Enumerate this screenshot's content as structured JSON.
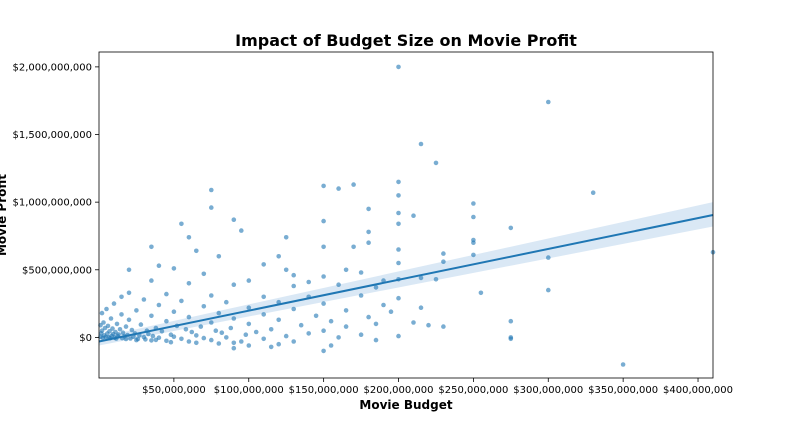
{
  "chart_data": {
    "type": "scatter",
    "title": "Impact of Budget Size on Movie Profit",
    "xlabel": "Movie Budget",
    "ylabel": "Movie Profit",
    "xlim": [
      0,
      410000000
    ],
    "ylim": [
      -300000000,
      2110000000
    ],
    "x_ticks": [
      {
        "value": 50000000,
        "label": "$50,000,000"
      },
      {
        "value": 100000000,
        "label": "$100,000,000"
      },
      {
        "value": 150000000,
        "label": "$150,000,000"
      },
      {
        "value": 200000000,
        "label": "$200,000,000"
      },
      {
        "value": 250000000,
        "label": "$250,000,000"
      },
      {
        "value": 300000000,
        "label": "$300,000,000"
      },
      {
        "value": 350000000,
        "label": "$350,000,000"
      },
      {
        "value": 400000000,
        "label": "$400,000,000"
      }
    ],
    "y_ticks": [
      {
        "value": 0,
        "label": "$0"
      },
      {
        "value": 500000000,
        "label": "$500,000,000"
      },
      {
        "value": 1000000000,
        "label": "$1,000,000,000"
      },
      {
        "value": 1500000000,
        "label": "$1,500,000,000"
      },
      {
        "value": 2000000000,
        "label": "$2,000,000,000"
      }
    ],
    "regression": {
      "x": [
        0,
        410000000
      ],
      "y": [
        -30000000,
        905000000
      ],
      "ci_lower": [
        -60000000,
        820000000
      ],
      "ci_upper": [
        0,
        1000000000
      ]
    },
    "colors": {
      "points": "#1f77b4",
      "line": "#1f77b4",
      "band": "#aecde8"
    },
    "points": [
      [
        200000000,
        2000000000
      ],
      [
        300000000,
        1740000000
      ],
      [
        215000000,
        1430000000
      ],
      [
        225000000,
        1290000000
      ],
      [
        330000000,
        1070000000
      ],
      [
        75000000,
        1090000000
      ],
      [
        150000000,
        1120000000
      ],
      [
        170000000,
        1130000000
      ],
      [
        200000000,
        1150000000
      ],
      [
        160000000,
        1100000000
      ],
      [
        200000000,
        1050000000
      ],
      [
        250000000,
        990000000
      ],
      [
        75000000,
        960000000
      ],
      [
        180000000,
        950000000
      ],
      [
        200000000,
        920000000
      ],
      [
        210000000,
        900000000
      ],
      [
        250000000,
        890000000
      ],
      [
        90000000,
        870000000
      ],
      [
        150000000,
        860000000
      ],
      [
        200000000,
        840000000
      ],
      [
        55000000,
        840000000
      ],
      [
        275000000,
        810000000
      ],
      [
        95000000,
        790000000
      ],
      [
        180000000,
        780000000
      ],
      [
        60000000,
        740000000
      ],
      [
        125000000,
        740000000
      ],
      [
        250000000,
        720000000
      ],
      [
        180000000,
        700000000
      ],
      [
        250000000,
        700000000
      ],
      [
        35000000,
        670000000
      ],
      [
        150000000,
        670000000
      ],
      [
        170000000,
        670000000
      ],
      [
        65000000,
        640000000
      ],
      [
        200000000,
        650000000
      ],
      [
        230000000,
        620000000
      ],
      [
        120000000,
        600000000
      ],
      [
        300000000,
        590000000
      ],
      [
        80000000,
        600000000
      ],
      [
        230000000,
        560000000
      ],
      [
        200000000,
        550000000
      ],
      [
        40000000,
        530000000
      ],
      [
        110000000,
        540000000
      ],
      [
        20000000,
        500000000
      ],
      [
        50000000,
        510000000
      ],
      [
        125000000,
        500000000
      ],
      [
        165000000,
        500000000
      ],
      [
        175000000,
        480000000
      ],
      [
        70000000,
        470000000
      ],
      [
        130000000,
        460000000
      ],
      [
        150000000,
        450000000
      ],
      [
        200000000,
        430000000
      ],
      [
        250000000,
        610000000
      ],
      [
        100000000,
        420000000
      ],
      [
        140000000,
        410000000
      ],
      [
        190000000,
        420000000
      ],
      [
        225000000,
        430000000
      ],
      [
        215000000,
        440000000
      ],
      [
        35000000,
        420000000
      ],
      [
        60000000,
        400000000
      ],
      [
        90000000,
        390000000
      ],
      [
        130000000,
        380000000
      ],
      [
        160000000,
        390000000
      ],
      [
        185000000,
        370000000
      ],
      [
        300000000,
        350000000
      ],
      [
        255000000,
        330000000
      ],
      [
        20000000,
        330000000
      ],
      [
        45000000,
        320000000
      ],
      [
        75000000,
        310000000
      ],
      [
        110000000,
        300000000
      ],
      [
        140000000,
        300000000
      ],
      [
        175000000,
        310000000
      ],
      [
        200000000,
        290000000
      ],
      [
        15000000,
        300000000
      ],
      [
        30000000,
        280000000
      ],
      [
        55000000,
        270000000
      ],
      [
        85000000,
        260000000
      ],
      [
        120000000,
        260000000
      ],
      [
        150000000,
        250000000
      ],
      [
        190000000,
        240000000
      ],
      [
        215000000,
        220000000
      ],
      [
        10000000,
        250000000
      ],
      [
        40000000,
        240000000
      ],
      [
        70000000,
        230000000
      ],
      [
        100000000,
        220000000
      ],
      [
        130000000,
        210000000
      ],
      [
        165000000,
        200000000
      ],
      [
        195000000,
        190000000
      ],
      [
        5000000,
        210000000
      ],
      [
        25000000,
        200000000
      ],
      [
        50000000,
        190000000
      ],
      [
        80000000,
        180000000
      ],
      [
        110000000,
        170000000
      ],
      [
        145000000,
        160000000
      ],
      [
        180000000,
        150000000
      ],
      [
        275000000,
        120000000
      ],
      [
        210000000,
        110000000
      ],
      [
        2000000,
        180000000
      ],
      [
        15000000,
        170000000
      ],
      [
        35000000,
        160000000
      ],
      [
        60000000,
        150000000
      ],
      [
        90000000,
        140000000
      ],
      [
        120000000,
        130000000
      ],
      [
        155000000,
        120000000
      ],
      [
        185000000,
        100000000
      ],
      [
        8000000,
        140000000
      ],
      [
        20000000,
        130000000
      ],
      [
        45000000,
        120000000
      ],
      [
        75000000,
        110000000
      ],
      [
        100000000,
        100000000
      ],
      [
        135000000,
        90000000
      ],
      [
        165000000,
        80000000
      ],
      [
        220000000,
        90000000
      ],
      [
        3000000,
        110000000
      ],
      [
        12000000,
        100000000
      ],
      [
        28000000,
        95000000
      ],
      [
        52000000,
        85000000
      ],
      [
        68000000,
        80000000
      ],
      [
        88000000,
        70000000
      ],
      [
        115000000,
        60000000
      ],
      [
        150000000,
        50000000
      ],
      [
        1000000,
        90000000
      ],
      [
        6000000,
        85000000
      ],
      [
        18000000,
        80000000
      ],
      [
        38000000,
        70000000
      ],
      [
        58000000,
        60000000
      ],
      [
        78000000,
        50000000
      ],
      [
        105000000,
        40000000
      ],
      [
        140000000,
        30000000
      ],
      [
        175000000,
        20000000
      ],
      [
        200000000,
        10000000
      ],
      [
        230000000,
        80000000
      ],
      [
        275000000,
        0
      ],
      [
        4000000,
        70000000
      ],
      [
        9000000,
        65000000
      ],
      [
        14000000,
        60000000
      ],
      [
        22000000,
        55000000
      ],
      [
        32000000,
        50000000
      ],
      [
        42000000,
        45000000
      ],
      [
        62000000,
        40000000
      ],
      [
        82000000,
        35000000
      ],
      [
        98000000,
        20000000
      ],
      [
        125000000,
        10000000
      ],
      [
        160000000,
        0
      ],
      [
        185000000,
        -20000000
      ],
      [
        2000000,
        50000000
      ],
      [
        7000000,
        45000000
      ],
      [
        11000000,
        40000000
      ],
      [
        16000000,
        35000000
      ],
      [
        24000000,
        30000000
      ],
      [
        33000000,
        25000000
      ],
      [
        48000000,
        20000000
      ],
      [
        65000000,
        15000000
      ],
      [
        85000000,
        0
      ],
      [
        110000000,
        -10000000
      ],
      [
        130000000,
        -30000000
      ],
      [
        155000000,
        -60000000
      ],
      [
        1500000,
        30000000
      ],
      [
        5500000,
        28000000
      ],
      [
        9500000,
        25000000
      ],
      [
        13000000,
        22000000
      ],
      [
        19000000,
        18000000
      ],
      [
        27000000,
        15000000
      ],
      [
        36000000,
        10000000
      ],
      [
        50000000,
        5000000
      ],
      [
        70000000,
        -5000000
      ],
      [
        90000000,
        -40000000
      ],
      [
        120000000,
        -50000000
      ],
      [
        150000000,
        -100000000
      ],
      [
        3500000,
        15000000
      ],
      [
        8500000,
        12000000
      ],
      [
        12500000,
        10000000
      ],
      [
        17000000,
        8000000
      ],
      [
        23000000,
        5000000
      ],
      [
        30000000,
        2000000
      ],
      [
        40000000,
        -2000000
      ],
      [
        55000000,
        -10000000
      ],
      [
        75000000,
        -20000000
      ],
      [
        95000000,
        -30000000
      ],
      [
        275000000,
        -10000000
      ],
      [
        350000000,
        -200000000
      ],
      [
        410000000,
        630000000
      ],
      [
        1000000,
        5000000
      ],
      [
        4500000,
        3000000
      ],
      [
        6500000,
        1000000
      ],
      [
        10500000,
        -2000000
      ],
      [
        15500000,
        -5000000
      ],
      [
        21000000,
        -8000000
      ],
      [
        26000000,
        -12000000
      ],
      [
        31000000,
        -15000000
      ],
      [
        38000000,
        -18000000
      ],
      [
        45000000,
        -25000000
      ],
      [
        60000000,
        -30000000
      ],
      [
        80000000,
        -45000000
      ],
      [
        100000000,
        -60000000
      ],
      [
        115000000,
        -70000000
      ],
      [
        2500000,
        -3000000
      ],
      [
        7500000,
        -6000000
      ],
      [
        11500000,
        -9000000
      ],
      [
        18000000,
        -12000000
      ],
      [
        25000000,
        -20000000
      ],
      [
        35000000,
        -22000000
      ],
      [
        48000000,
        -35000000
      ],
      [
        65000000,
        -40000000
      ],
      [
        90000000,
        -80000000
      ]
    ]
  }
}
